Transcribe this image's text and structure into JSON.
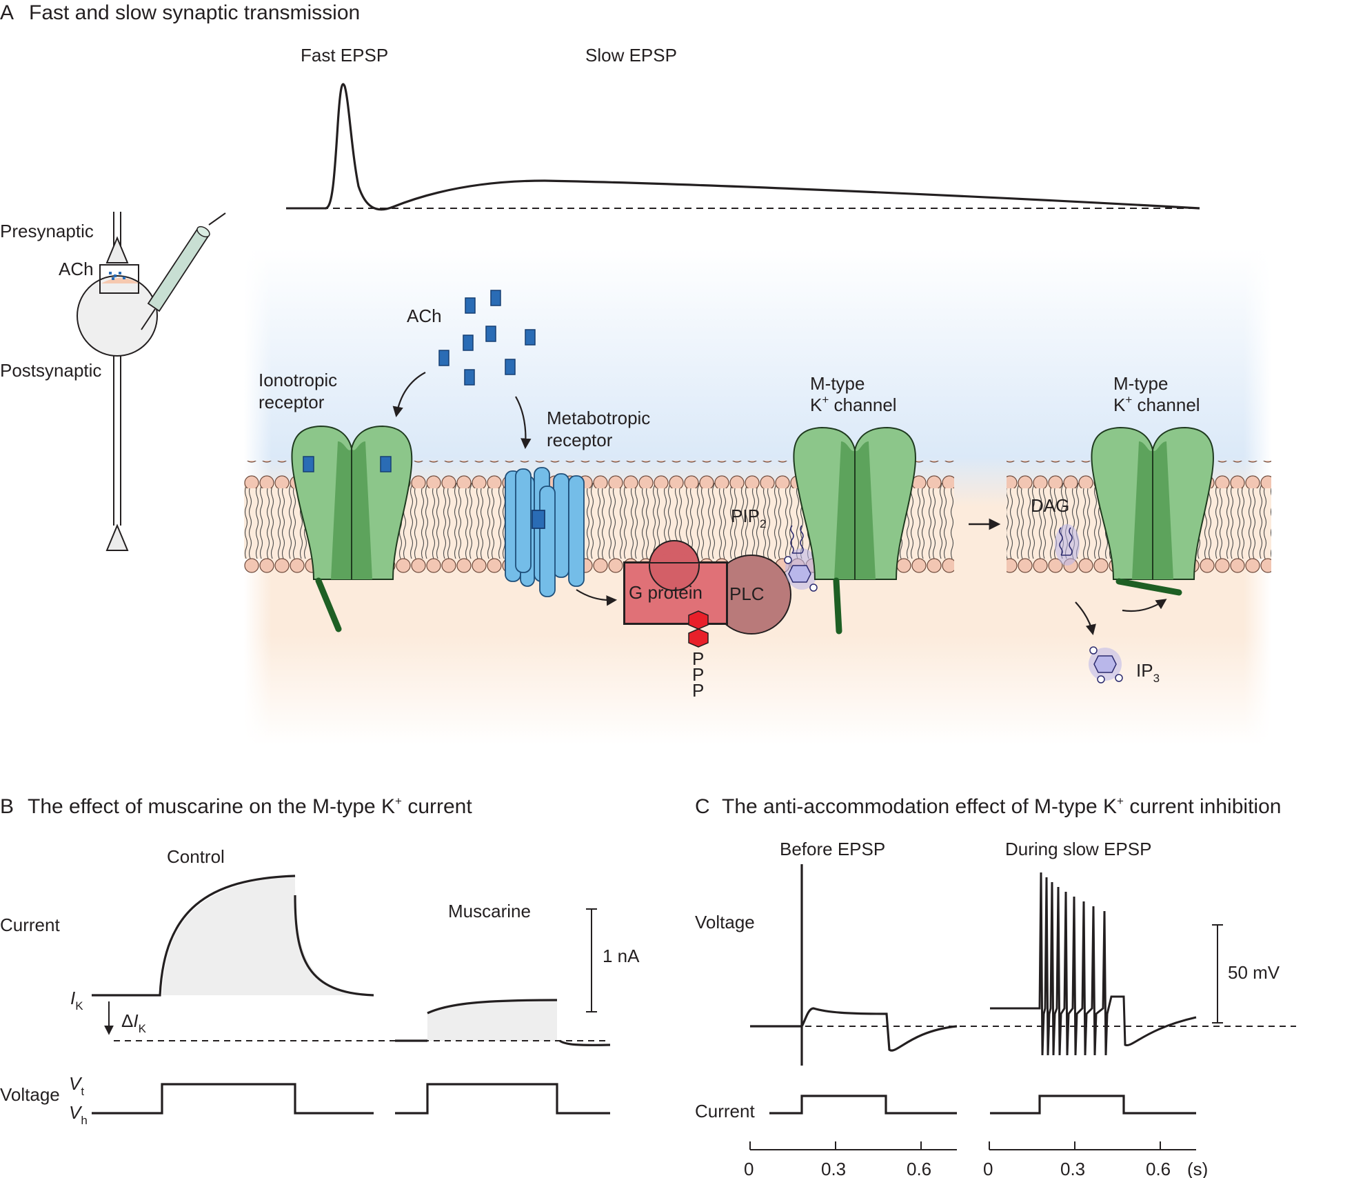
{
  "colors": {
    "receptor_green": "#8cc68a",
    "receptor_green_dark": "#5da35c",
    "ach_blue": "#2a6cb5",
    "metabotropic_blue": "#74bde8",
    "g_protein_red": "#e07177",
    "plc_brown": "#b97a7a",
    "phosphate_red": "#e8202a",
    "lipid_head": "#f2c6b3",
    "extracellular_blue": "#dbe9f8",
    "intracellular_peach": "#fcebdc",
    "pip_lilac": "#b9b7ea"
  },
  "panel_a": {
    "letter": "A",
    "title": "Fast and slow synaptic transmission",
    "fast_epsp": "Fast EPSP",
    "slow_epsp": "Slow EPSP",
    "presynaptic": "Presynaptic",
    "ach_small": "ACh",
    "postsynaptic": "Postsynaptic",
    "ach": "ACh",
    "ionotropic_1": "Ionotropic",
    "ionotropic_2": "receptor",
    "metabotropic_1": "Metabotropic",
    "metabotropic_2": "receptor",
    "mtype_1": "M-type",
    "mtype_2a": "K",
    "mtype_sup": "+",
    "mtype_2b": " channel",
    "pip_base": "PIP",
    "pip_sub": "2",
    "g_protein": "G protein",
    "plc": "PLC",
    "phosphate": [
      "P",
      "P",
      "P"
    ],
    "dag": "DAG",
    "ip_base": "IP",
    "ip_sub": "3"
  },
  "panel_b": {
    "letter": "B",
    "title_a": "The effect of muscarine on the M-type K",
    "title_sup": "+",
    "title_b": " current",
    "control": "Control",
    "muscarine": "Muscarine",
    "current": "Current",
    "ik_base": "I",
    "ik_sub": "K",
    "delta": "Δ",
    "scale": "1 nA",
    "voltage": "Voltage",
    "v_base": "V",
    "vt_sub": "t",
    "vh_sub": "h"
  },
  "panel_c": {
    "letter": "C",
    "title_a": "The anti-accommodation effect of M-type K",
    "title_sup": "+",
    "title_b": " current inhibition",
    "before": "Before EPSP",
    "during": "During slow EPSP",
    "voltage": "Voltage",
    "current": "Current",
    "scale": "50 mV",
    "ticks": [
      "0",
      "0.3",
      "0.6"
    ],
    "unit": "(s)"
  }
}
